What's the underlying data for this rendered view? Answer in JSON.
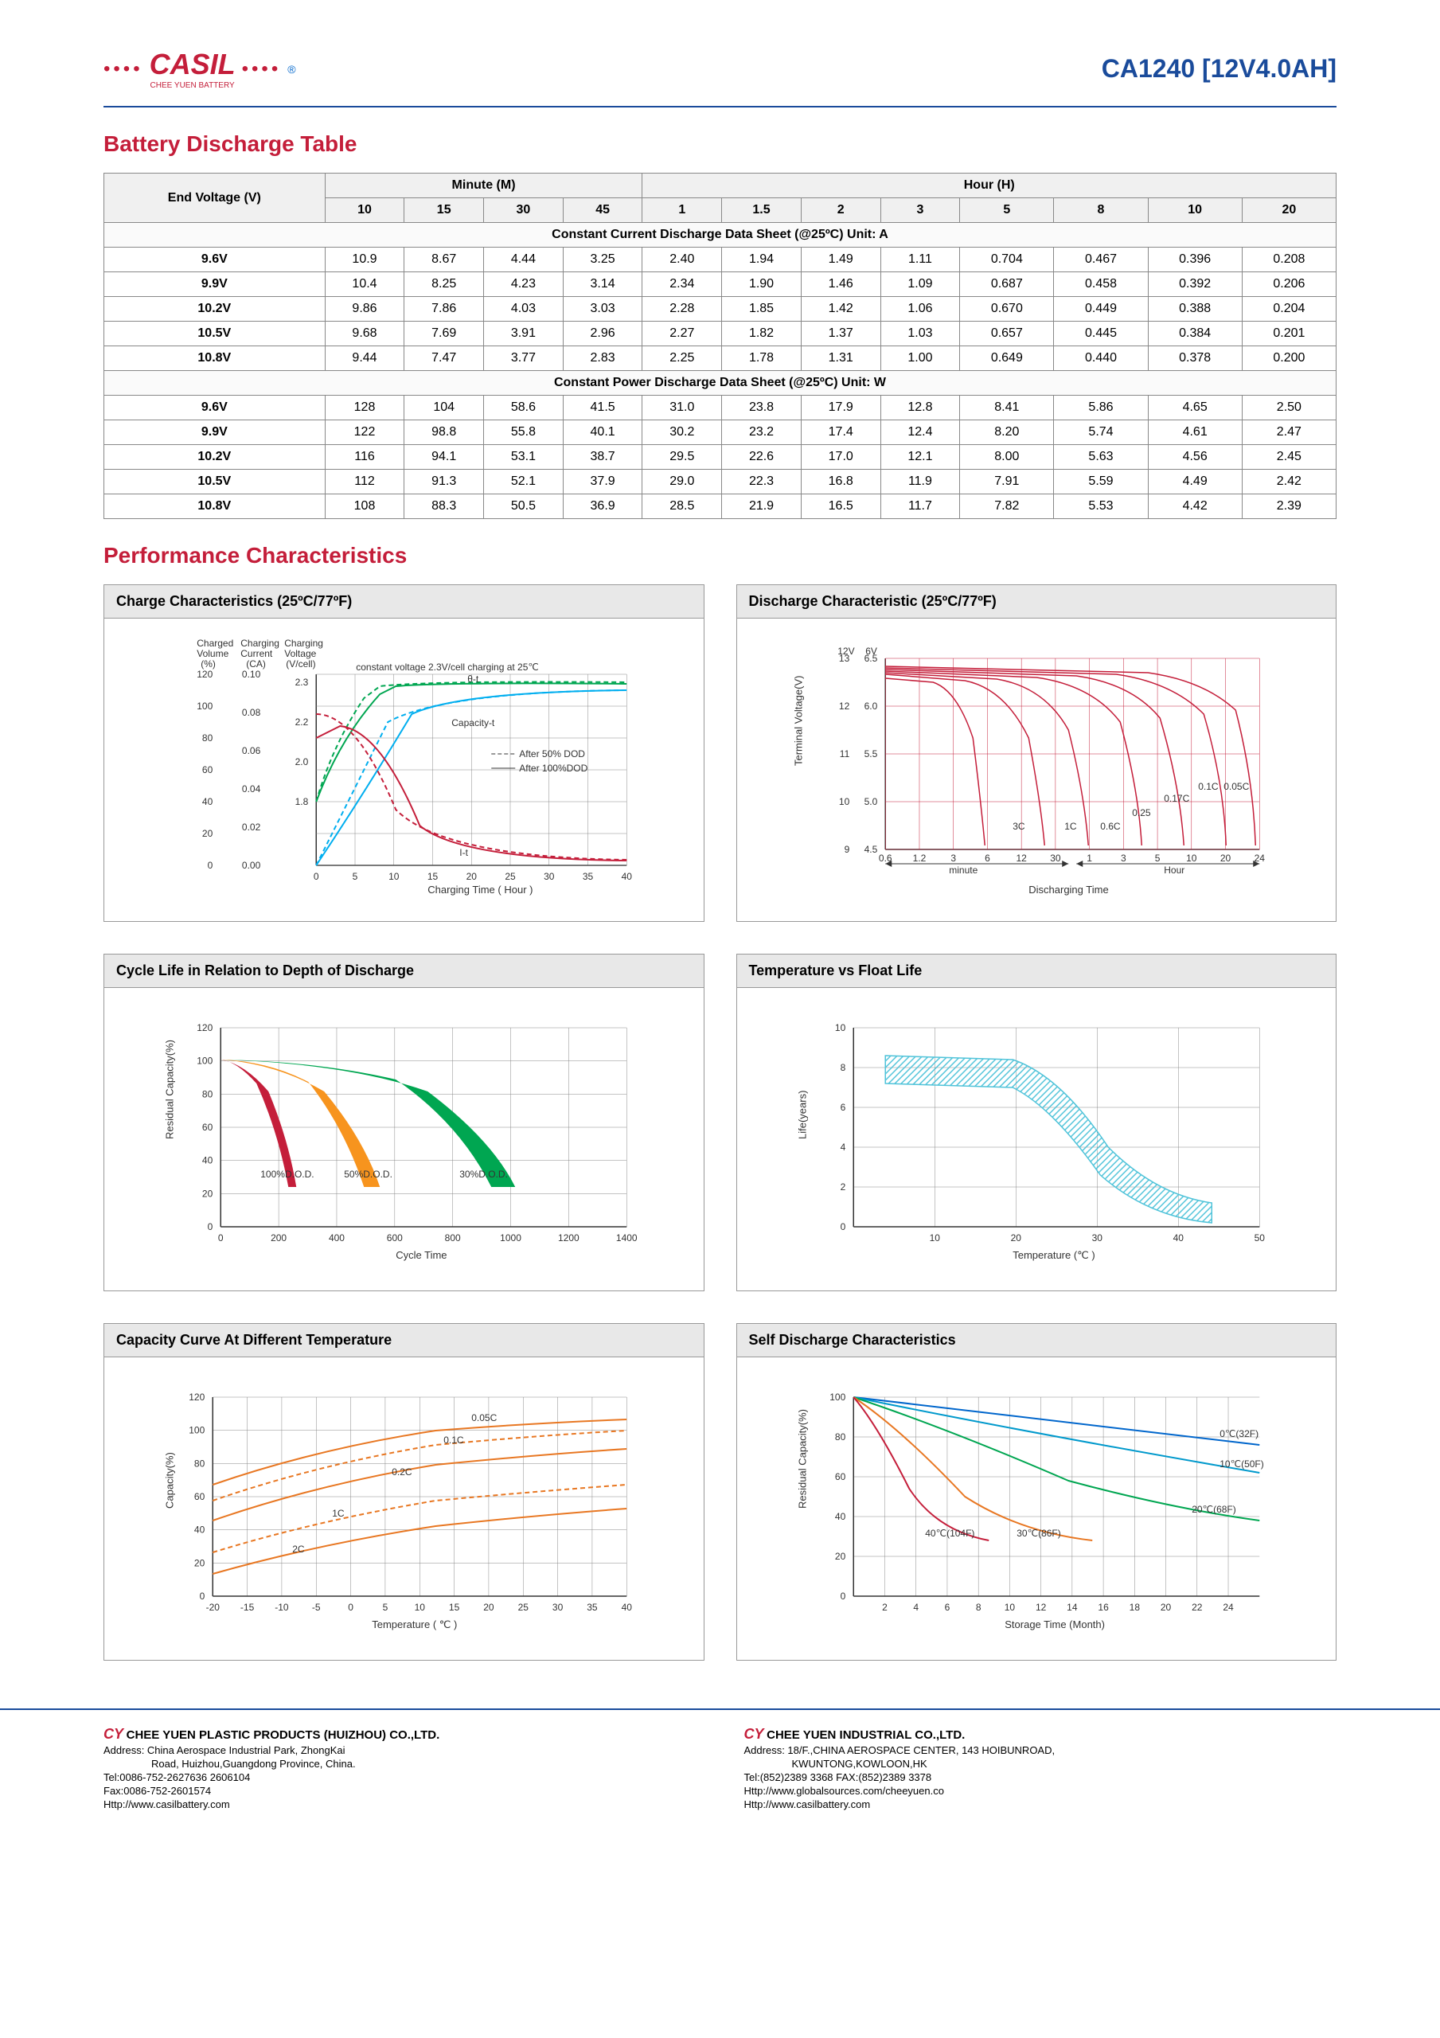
{
  "header": {
    "logo_text": "CASIL",
    "logo_sub": "CHEE YUEN BATTERY",
    "model": "CA1240 [12V4.0AH]"
  },
  "titles": {
    "discharge_table": "Battery Discharge Table",
    "performance": "Performance Characteristics"
  },
  "discharge_table": {
    "row_header": "End Voltage (V)",
    "minute_header": "Minute (M)",
    "hour_header": "Hour (H)",
    "minute_cols": [
      "10",
      "15",
      "30",
      "45"
    ],
    "hour_cols": [
      "1",
      "1.5",
      "2",
      "3",
      "5",
      "8",
      "10",
      "20"
    ],
    "current_section": "Constant Current Discharge Data Sheet    (@25ºC)    Unit: A",
    "power_section": "Constant Power Discharge Data Sheet    (@25ºC)    Unit: W",
    "voltages": [
      "9.6V",
      "9.9V",
      "10.2V",
      "10.5V",
      "10.8V"
    ],
    "current_data": [
      [
        "10.9",
        "8.67",
        "4.44",
        "3.25",
        "2.40",
        "1.94",
        "1.49",
        "1.11",
        "0.704",
        "0.467",
        "0.396",
        "0.208"
      ],
      [
        "10.4",
        "8.25",
        "4.23",
        "3.14",
        "2.34",
        "1.90",
        "1.46",
        "1.09",
        "0.687",
        "0.458",
        "0.392",
        "0.206"
      ],
      [
        "9.86",
        "7.86",
        "4.03",
        "3.03",
        "2.28",
        "1.85",
        "1.42",
        "1.06",
        "0.670",
        "0.449",
        "0.388",
        "0.204"
      ],
      [
        "9.68",
        "7.69",
        "3.91",
        "2.96",
        "2.27",
        "1.82",
        "1.37",
        "1.03",
        "0.657",
        "0.445",
        "0.384",
        "0.201"
      ],
      [
        "9.44",
        "7.47",
        "3.77",
        "2.83",
        "2.25",
        "1.78",
        "1.31",
        "1.00",
        "0.649",
        "0.440",
        "0.378",
        "0.200"
      ]
    ],
    "power_data": [
      [
        "128",
        "104",
        "58.6",
        "41.5",
        "31.0",
        "23.8",
        "17.9",
        "12.8",
        "8.41",
        "5.86",
        "4.65",
        "2.50"
      ],
      [
        "122",
        "98.8",
        "55.8",
        "40.1",
        "30.2",
        "23.2",
        "17.4",
        "12.4",
        "8.20",
        "5.74",
        "4.61",
        "2.47"
      ],
      [
        "116",
        "94.1",
        "53.1",
        "38.7",
        "29.5",
        "22.6",
        "17.0",
        "12.1",
        "8.00",
        "5.63",
        "4.56",
        "2.45"
      ],
      [
        "112",
        "91.3",
        "52.1",
        "37.9",
        "29.0",
        "22.3",
        "16.8",
        "11.9",
        "7.91",
        "5.59",
        "4.49",
        "2.42"
      ],
      [
        "108",
        "88.3",
        "50.5",
        "36.9",
        "28.5",
        "21.9",
        "16.5",
        "11.7",
        "7.82",
        "5.53",
        "4.42",
        "2.39"
      ]
    ]
  },
  "charts": {
    "charge": {
      "title": "Charge Characteristics (25ºC/77ºF)",
      "y_label_left": "Charged Volume (%)",
      "y_label_mid": "Charging Current (CA)",
      "y_label_right": "Charging Voltage (V/cell)",
      "subtitle": "constant voltage 2.3V/cell charging at 25℃",
      "x_label": "Charging Time ( Hour )",
      "y_ticks_left": [
        0,
        20,
        40,
        60,
        80,
        100,
        120
      ],
      "y_ticks_mid": [
        "0.00",
        "0.02",
        "0.04",
        "0.06",
        "0.08",
        "0.10"
      ],
      "y_ticks_right": [
        "1.8",
        "2.0",
        "2.2",
        "2.3"
      ],
      "x_ticks": [
        0,
        5,
        10,
        15,
        20,
        25,
        30,
        35,
        40
      ],
      "legend": [
        "After 50% DOD",
        "After 100%DOD"
      ],
      "curve_labels": {
        "theta_t": "θ-t",
        "capacity_t": "Capacity-t",
        "i_t": "I-t"
      },
      "colors": {
        "voltage": "#00a651",
        "capacity": "#00aeef",
        "current": "#c41e3a"
      }
    },
    "discharge": {
      "title": "Discharge Characteristic (25ºC/77ºF)",
      "y_label": "Terminal Voltage(V)",
      "x_label": "Discharging Time",
      "y_header_12v": "12V",
      "y_header_6v": "6V",
      "y_ticks_12v": [
        "9",
        "10",
        "11",
        "12",
        "13"
      ],
      "y_ticks_6v": [
        "4.5",
        "5.0",
        "5.5",
        "6.0",
        "6.5"
      ],
      "x_ticks_min": [
        "0.6",
        "1.2",
        "3",
        "6",
        "12",
        "30"
      ],
      "x_ticks_hr": [
        "1",
        "3",
        "5",
        "10",
        "20",
        "24"
      ],
      "x_unit_min": "minute",
      "x_unit_hr": "Hour",
      "rate_labels": [
        "3C",
        "1C",
        "0.6C",
        "0.25",
        "0.17C",
        "0.1C",
        "0.05C"
      ],
      "colors": {
        "line": "#c41e3a",
        "grid": "#c41e3a"
      }
    },
    "cycle": {
      "title": "Cycle Life in Relation to Depth of Discharge",
      "y_label": "Residual Capacity(%)",
      "x_label": "Cycle Time",
      "y_ticks": [
        0,
        20,
        40,
        60,
        80,
        100,
        120
      ],
      "x_ticks": [
        0,
        200,
        400,
        600,
        800,
        1000,
        1200,
        1400
      ],
      "dod_labels": [
        "100%D.O.D.",
        "50%D.O.D.",
        "30%D.O.D."
      ],
      "colors": {
        "100": "#c41e3a",
        "50": "#f7941e",
        "30": "#00a651",
        "label": "#0066cc"
      }
    },
    "temp_float": {
      "title": "Temperature vs Float Life",
      "y_label": "Life(years)",
      "x_label": "Temperature (℃ )",
      "y_ticks": [
        0,
        2,
        4,
        6,
        8,
        10
      ],
      "x_ticks": [
        10,
        20,
        30,
        40,
        50
      ],
      "band_color": "#4fc3d9"
    },
    "capacity_temp": {
      "title": "Capacity Curve At Different Temperature",
      "y_label": "Capacity(%)",
      "x_label": "Temperature ( ℃ )",
      "y_ticks": [
        0,
        20,
        40,
        60,
        80,
        100,
        120
      ],
      "x_ticks": [
        -20,
        -15,
        -10,
        -5,
        0,
        5,
        10,
        15,
        20,
        25,
        30,
        35,
        40
      ],
      "rate_labels": [
        "0.05C",
        "0.1C",
        "0.2C",
        "1C",
        "2C"
      ],
      "colors": {
        "solid": "#e87722",
        "dash": "#e87722",
        "label": "#0066cc"
      }
    },
    "self_discharge": {
      "title": "Self Discharge Characteristics",
      "y_label": "Residual Capacity(%)",
      "x_label": "Storage Time (Month)",
      "y_ticks": [
        0,
        20,
        40,
        60,
        80,
        100
      ],
      "x_ticks": [
        2,
        4,
        6,
        8,
        10,
        12,
        14,
        16,
        18,
        20,
        22,
        24
      ],
      "temp_labels": [
        "0℃(32F)",
        "10℃(50F)",
        "20℃(68F)",
        "30℃(86F)",
        "40℃(104F)"
      ],
      "colors": {
        "0": "#0066cc",
        "10": "#0099cc",
        "20": "#00a651",
        "30": "#e87722",
        "40": "#c41e3a"
      }
    }
  },
  "footer": {
    "left": {
      "company": "CHEE YUEN PLASTIC PRODUCTS (HUIZHOU) CO.,LTD.",
      "address1": "Address: China Aerospace Industrial Park, ZhongKai",
      "address2": "Road, Huizhou,Guangdong Province, China.",
      "tel": "Tel:0086-752-2627636  2606104",
      "fax": "Fax:0086-752-2601574",
      "web": "Http://www.casilbattery.com"
    },
    "right": {
      "company": "CHEE YUEN INDUSTRIAL CO.,LTD.",
      "address1": "Address: 18/F.,CHINA AEROSPACE CENTER, 143 HOIBUNROAD,",
      "address2": "KWUNTONG,KOWLOON,HK",
      "tel": "Tel:(852)2389 3368   FAX:(852)2389 3378",
      "web1": "Http://www.globalsources.com/cheeyuen.co",
      "web2": "Http://www.casilbattery.com"
    }
  }
}
